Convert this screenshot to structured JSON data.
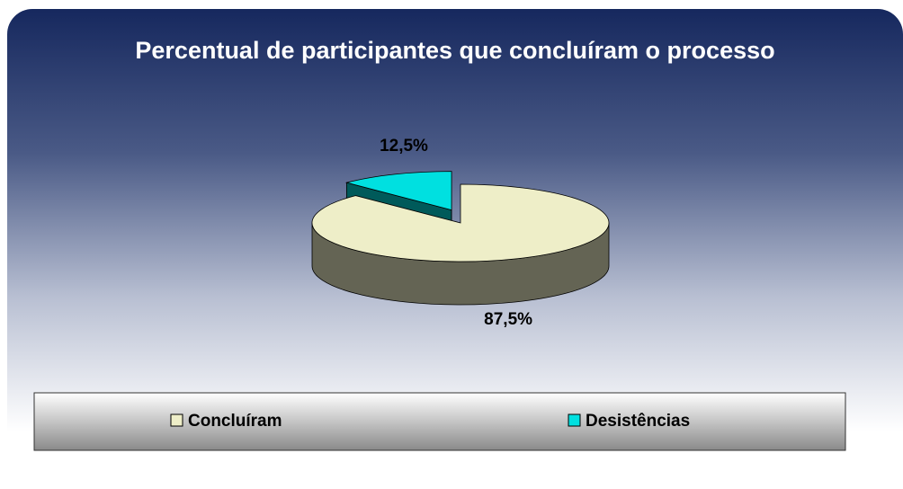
{
  "chart_data": {
    "type": "pie",
    "title": "Percentual de participantes que concluíram o processo",
    "categories": [
      "Concluíram",
      "Desistências"
    ],
    "values": [
      87.5,
      12.5
    ],
    "value_labels": [
      "87,5%",
      "12,5%"
    ],
    "colors": [
      "#eeeec8",
      "#00e0e0"
    ],
    "explode": [
      false,
      true
    ],
    "legend": "bottom"
  }
}
